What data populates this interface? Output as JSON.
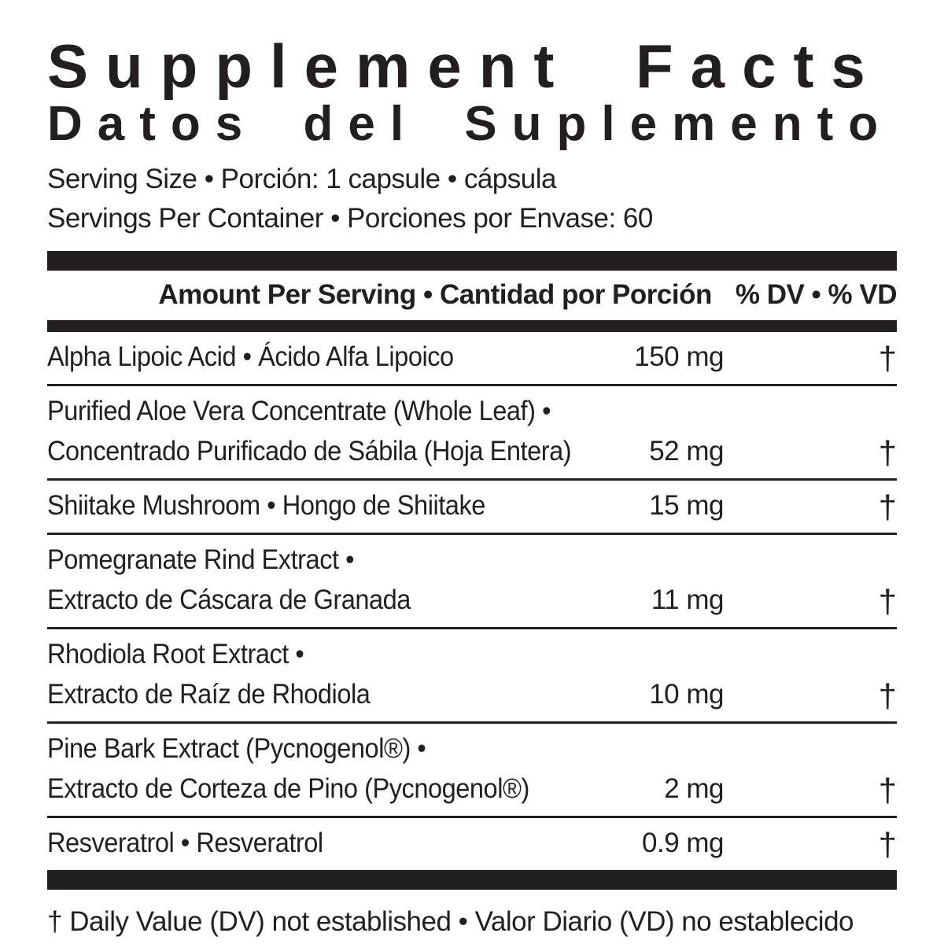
{
  "title": {
    "en": "Supplement Facts",
    "es": "Datos del Suplemento"
  },
  "serving": {
    "size_line": "Serving Size • Porción: 1 capsule • cápsula",
    "per_container_line": "Servings Per Container • Porciones por Envase: 60"
  },
  "table": {
    "header": {
      "amount_label": "Amount Per Serving • Cantidad por Porción",
      "dv_label": "% DV • % VD"
    },
    "rows": [
      {
        "name_lines": [
          "Alpha Lipoic Acid • Ácido Alfa Lipoico"
        ],
        "amount": "150 mg",
        "dv": "†"
      },
      {
        "name_lines": [
          "Purified Aloe Vera Concentrate (Whole Leaf) •",
          "Concentrado Purificado de Sábila (Hoja Entera)"
        ],
        "amount": "52 mg",
        "dv": "†"
      },
      {
        "name_lines": [
          "Shiitake Mushroom • Hongo de Shiitake"
        ],
        "amount": "15 mg",
        "dv": "†"
      },
      {
        "name_lines": [
          "Pomegranate Rind Extract •",
          "Extracto de Cáscara de Granada"
        ],
        "amount": "11 mg",
        "dv": "†"
      },
      {
        "name_lines": [
          "Rhodiola Root Extract •",
          "Extracto de Raíz de Rhodiola"
        ],
        "amount": "10 mg",
        "dv": "†"
      },
      {
        "name_lines": [
          "Pine Bark Extract (Pycnogenol®) •",
          "Extracto de Corteza de Pino (Pycnogenol®)"
        ],
        "amount": "2 mg",
        "dv": "†"
      },
      {
        "name_lines": [
          "Resveratrol • Resveratrol"
        ],
        "amount": "0.9 mg",
        "dv": "†"
      }
    ]
  },
  "footnote": "† Daily Value (DV) not established • Valor Diario (VD) no establecido",
  "colors": {
    "ink": "#231f20",
    "background": "#ffffff"
  }
}
